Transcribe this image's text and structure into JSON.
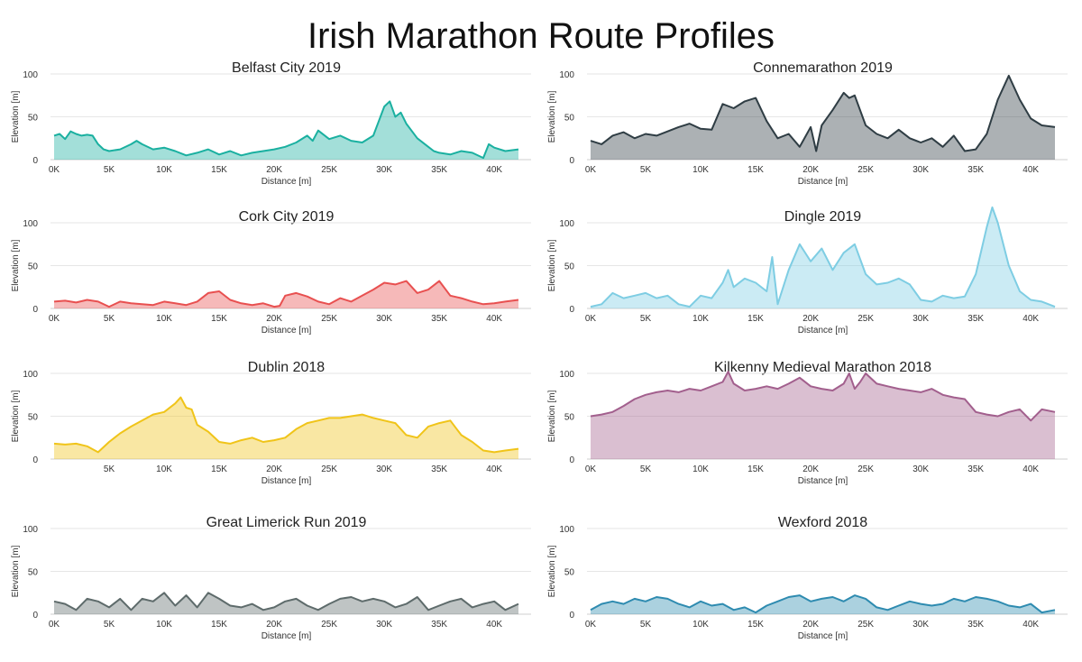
{
  "title": "Irish Marathon Route Profiles",
  "chart_data": [
    {
      "type": "area",
      "title": "Belfast City 2019",
      "color": "#1ab0a0",
      "xlabel": "Distance [m]",
      "ylabel": "Elevation [m]",
      "xlim": [
        0,
        42195
      ],
      "ylim": [
        0,
        100
      ],
      "x_tick_labels": [
        "0K",
        "5K",
        "10K",
        "15K",
        "20K",
        "25K",
        "30K",
        "35K",
        "40K"
      ],
      "y_tick_labels": [
        "0",
        "50",
        "100"
      ],
      "x": [
        0,
        500,
        1000,
        1500,
        2000,
        2500,
        3000,
        3500,
        4000,
        4500,
        5000,
        6000,
        7000,
        7500,
        8000,
        9000,
        10000,
        11000,
        12000,
        13000,
        14000,
        15000,
        16000,
        17000,
        18000,
        19000,
        20000,
        21000,
        22000,
        23000,
        23500,
        24000,
        25000,
        26000,
        27000,
        28000,
        29000,
        29500,
        30000,
        30500,
        31000,
        31500,
        32000,
        33000,
        34000,
        34500,
        35000,
        36000,
        37000,
        38000,
        39000,
        39500,
        40000,
        41000,
        42195
      ],
      "y": [
        28,
        30,
        24,
        33,
        30,
        28,
        29,
        28,
        18,
        12,
        10,
        12,
        18,
        22,
        18,
        12,
        14,
        10,
        5,
        8,
        12,
        6,
        10,
        5,
        8,
        10,
        12,
        15,
        20,
        28,
        22,
        34,
        24,
        28,
        22,
        20,
        28,
        45,
        62,
        68,
        50,
        55,
        42,
        25,
        15,
        10,
        8,
        6,
        10,
        8,
        2,
        18,
        14,
        10,
        12
      ]
    },
    {
      "type": "area",
      "title": "Connemarathon 2019",
      "color": "#2f3d44",
      "xlabel": "Distance [m]",
      "ylabel": "Elevation [m]",
      "xlim": [
        0,
        42195
      ],
      "ylim": [
        0,
        100
      ],
      "x_tick_labels": [
        "0K",
        "5K",
        "10K",
        "15K",
        "20K",
        "25K",
        "30K",
        "35K",
        "40K"
      ],
      "y_tick_labels": [
        "0",
        "50",
        "100"
      ],
      "x": [
        0,
        1000,
        2000,
        3000,
        4000,
        5000,
        6000,
        7000,
        8000,
        9000,
        10000,
        11000,
        12000,
        13000,
        14000,
        15000,
        16000,
        17000,
        18000,
        19000,
        20000,
        20500,
        21000,
        22000,
        23000,
        23500,
        24000,
        25000,
        26000,
        27000,
        28000,
        29000,
        30000,
        31000,
        32000,
        33000,
        34000,
        35000,
        36000,
        37000,
        38000,
        39000,
        40000,
        41000,
        42195
      ],
      "y": [
        22,
        18,
        28,
        32,
        25,
        30,
        28,
        33,
        38,
        42,
        36,
        35,
        65,
        60,
        68,
        72,
        45,
        25,
        30,
        15,
        38,
        10,
        40,
        58,
        78,
        72,
        75,
        40,
        30,
        25,
        35,
        25,
        20,
        25,
        15,
        28,
        10,
        12,
        30,
        70,
        98,
        70,
        48,
        40,
        38
      ]
    },
    {
      "type": "area",
      "title": "Cork City 2019",
      "color": "#e85050",
      "xlabel": "Distance [m]",
      "ylabel": "Elevation [m]",
      "xlim": [
        0,
        42195
      ],
      "ylim": [
        0,
        100
      ],
      "x_tick_labels": [
        "0K",
        "5K",
        "10K",
        "15K",
        "20K",
        "25K",
        "30K",
        "35K",
        "40K"
      ],
      "y_tick_labels": [
        "0",
        "50",
        "100"
      ],
      "x": [
        0,
        1000,
        2000,
        3000,
        4000,
        5000,
        6000,
        7000,
        8000,
        9000,
        10000,
        11000,
        12000,
        13000,
        14000,
        15000,
        16000,
        17000,
        18000,
        19000,
        20000,
        20500,
        21000,
        22000,
        23000,
        24000,
        25000,
        26000,
        27000,
        28000,
        29000,
        30000,
        31000,
        32000,
        33000,
        34000,
        35000,
        36000,
        37000,
        38000,
        39000,
        40000,
        41000,
        42195
      ],
      "y": [
        8,
        9,
        7,
        10,
        8,
        2,
        8,
        6,
        5,
        4,
        8,
        6,
        4,
        8,
        18,
        20,
        10,
        6,
        4,
        6,
        2,
        3,
        15,
        18,
        14,
        8,
        5,
        12,
        8,
        15,
        22,
        30,
        28,
        32,
        18,
        22,
        32,
        15,
        12,
        8,
        5,
        6,
        8,
        10
      ]
    },
    {
      "type": "area",
      "title": "Dingle 2019",
      "color": "#7ecde3",
      "xlabel": "Distance [m]",
      "ylabel": "Elevation [m]",
      "xlim": [
        0,
        42195
      ],
      "ylim": [
        0,
        100
      ],
      "x_tick_labels": [
        "0K",
        "5K",
        "10K",
        "15K",
        "20K",
        "25K",
        "30K",
        "35K",
        "40K"
      ],
      "y_tick_labels": [
        "0",
        "50",
        "100"
      ],
      "x": [
        0,
        1000,
        2000,
        3000,
        4000,
        5000,
        6000,
        7000,
        8000,
        9000,
        10000,
        11000,
        12000,
        12500,
        13000,
        14000,
        15000,
        16000,
        16500,
        17000,
        18000,
        19000,
        20000,
        21000,
        22000,
        23000,
        24000,
        25000,
        26000,
        27000,
        28000,
        29000,
        30000,
        31000,
        32000,
        33000,
        34000,
        35000,
        36000,
        36500,
        37000,
        38000,
        39000,
        40000,
        41000,
        42195
      ],
      "y": [
        2,
        5,
        18,
        12,
        15,
        18,
        12,
        15,
        5,
        2,
        15,
        12,
        30,
        45,
        25,
        35,
        30,
        20,
        60,
        5,
        45,
        75,
        55,
        70,
        45,
        65,
        75,
        40,
        28,
        30,
        35,
        28,
        10,
        8,
        15,
        12,
        14,
        40,
        95,
        118,
        100,
        50,
        20,
        10,
        8,
        2
      ]
    },
    {
      "type": "area",
      "title": "Dublin 2018",
      "color": "#f0c419",
      "xlabel": "Distance [m]",
      "ylabel": "Elevation [m]",
      "xlim": [
        0,
        42195
      ],
      "ylim": [
        0,
        100
      ],
      "x_tick_labels": [
        "5K",
        "10K",
        "15K",
        "20K",
        "25K",
        "30K",
        "35K",
        "40K"
      ],
      "y_tick_labels": [
        "0",
        "50",
        "100"
      ],
      "x": [
        0,
        1000,
        2000,
        3000,
        4000,
        5000,
        6000,
        7000,
        8000,
        9000,
        10000,
        11000,
        11500,
        12000,
        12500,
        13000,
        14000,
        15000,
        16000,
        17000,
        18000,
        19000,
        20000,
        21000,
        22000,
        23000,
        24000,
        25000,
        26000,
        27000,
        28000,
        29000,
        30000,
        31000,
        32000,
        33000,
        34000,
        35000,
        36000,
        37000,
        38000,
        39000,
        40000,
        41000,
        42195
      ],
      "y": [
        18,
        17,
        18,
        15,
        8,
        20,
        30,
        38,
        45,
        52,
        55,
        65,
        72,
        60,
        58,
        40,
        32,
        20,
        18,
        22,
        25,
        20,
        22,
        25,
        35,
        42,
        45,
        48,
        48,
        50,
        52,
        48,
        45,
        42,
        28,
        25,
        38,
        42,
        45,
        28,
        20,
        10,
        8,
        10,
        12
      ]
    },
    {
      "type": "area",
      "title": "Kilkenny Medieval Marathon 2018",
      "color": "#a25f8d",
      "xlabel": "Distance [m]",
      "ylabel": "Elevation [m]",
      "xlim": [
        0,
        42195
      ],
      "ylim": [
        0,
        100
      ],
      "x_tick_labels": [
        "0K",
        "5K",
        "10K",
        "15K",
        "20K",
        "25K",
        "30K",
        "35K",
        "40K"
      ],
      "y_tick_labels": [
        "0",
        "50",
        "100"
      ],
      "x": [
        0,
        1000,
        2000,
        3000,
        4000,
        5000,
        6000,
        7000,
        8000,
        9000,
        10000,
        11000,
        12000,
        12500,
        13000,
        14000,
        15000,
        16000,
        17000,
        18000,
        19000,
        20000,
        21000,
        22000,
        23000,
        23500,
        24000,
        24500,
        25000,
        26000,
        27000,
        28000,
        29000,
        30000,
        31000,
        32000,
        33000,
        34000,
        35000,
        36000,
        37000,
        38000,
        39000,
        40000,
        41000,
        42195
      ],
      "y": [
        50,
        52,
        55,
        62,
        70,
        75,
        78,
        80,
        78,
        82,
        80,
        85,
        90,
        102,
        88,
        80,
        82,
        85,
        82,
        88,
        95,
        85,
        82,
        80,
        88,
        100,
        82,
        90,
        100,
        88,
        85,
        82,
        80,
        78,
        82,
        75,
        72,
        70,
        55,
        52,
        50,
        55,
        58,
        45,
        58,
        55
      ]
    },
    {
      "type": "area",
      "title": "Great Limerick Run 2019",
      "color": "#5e6b6b",
      "xlabel": "Distance [m]",
      "ylabel": "Elevation [m]",
      "xlim": [
        0,
        42195
      ],
      "ylim": [
        0,
        100
      ],
      "x_tick_labels": [
        "0K",
        "5K",
        "10K",
        "15K",
        "20K",
        "25K",
        "30K",
        "35K",
        "40K"
      ],
      "y_tick_labels": [
        "0",
        "50",
        "100"
      ],
      "x": [
        0,
        1000,
        2000,
        3000,
        4000,
        5000,
        6000,
        7000,
        8000,
        9000,
        10000,
        11000,
        12000,
        13000,
        14000,
        15000,
        16000,
        17000,
        18000,
        19000,
        20000,
        21000,
        22000,
        23000,
        24000,
        25000,
        26000,
        27000,
        28000,
        29000,
        30000,
        31000,
        32000,
        33000,
        34000,
        35000,
        36000,
        37000,
        38000,
        39000,
        40000,
        41000,
        42195
      ],
      "y": [
        15,
        12,
        5,
        18,
        15,
        8,
        18,
        5,
        18,
        15,
        25,
        10,
        22,
        8,
        25,
        18,
        10,
        8,
        12,
        5,
        8,
        15,
        18,
        10,
        5,
        12,
        18,
        20,
        15,
        18,
        15,
        8,
        12,
        20,
        5,
        10,
        15,
        18,
        8,
        12,
        15,
        5,
        12
      ]
    },
    {
      "type": "area",
      "title": "Wexford 2018",
      "color": "#2e8bb0",
      "xlabel": "Distance [m]",
      "ylabel": "Elevation [m]",
      "xlim": [
        0,
        42195
      ],
      "ylim": [
        0,
        100
      ],
      "x_tick_labels": [
        "0K",
        "5K",
        "10K",
        "15K",
        "20K",
        "25K",
        "30K",
        "35K",
        "40K"
      ],
      "y_tick_labels": [
        "0",
        "50",
        "100"
      ],
      "x": [
        0,
        1000,
        2000,
        3000,
        4000,
        5000,
        6000,
        7000,
        8000,
        9000,
        10000,
        11000,
        12000,
        13000,
        14000,
        15000,
        16000,
        17000,
        18000,
        19000,
        20000,
        21000,
        22000,
        23000,
        24000,
        25000,
        26000,
        27000,
        28000,
        29000,
        30000,
        31000,
        32000,
        33000,
        34000,
        35000,
        36000,
        37000,
        38000,
        39000,
        40000,
        41000,
        42195
      ],
      "y": [
        5,
        12,
        15,
        12,
        18,
        15,
        20,
        18,
        12,
        8,
        15,
        10,
        12,
        5,
        8,
        2,
        10,
        15,
        20,
        22,
        15,
        18,
        20,
        15,
        22,
        18,
        8,
        5,
        10,
        15,
        12,
        10,
        12,
        18,
        15,
        20,
        18,
        15,
        10,
        8,
        12,
        2,
        5
      ]
    }
  ]
}
